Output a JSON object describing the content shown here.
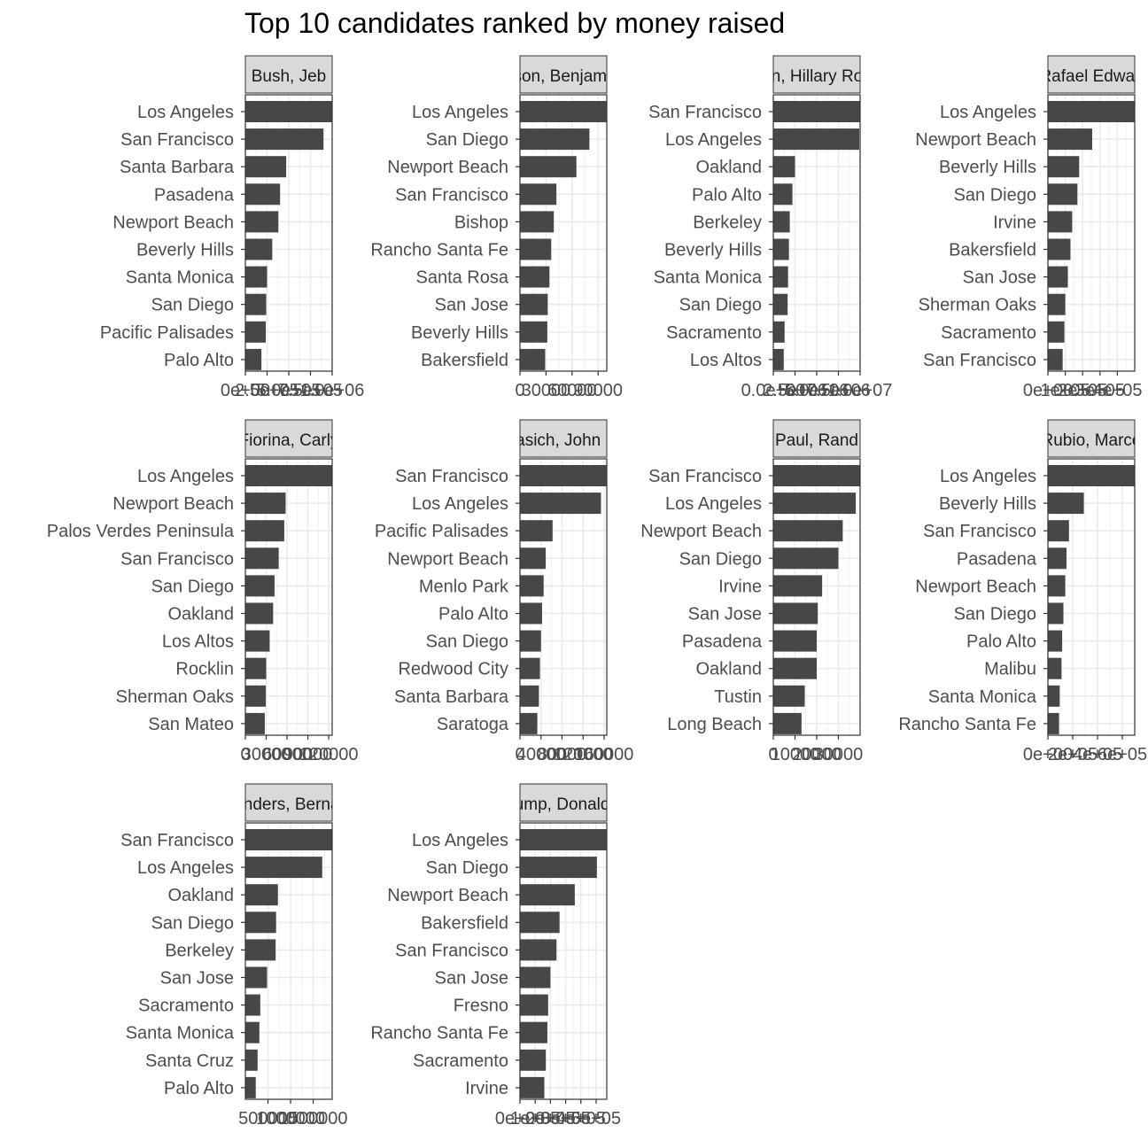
{
  "chart_data": {
    "type": "bar",
    "orientation": "horizontal",
    "title": "Top 10 candidates ranked by money raised",
    "xlabel": "",
    "ylabel": "",
    "grid": true,
    "bar_color": "#474747",
    "panels": [
      {
        "strip": "Bush, Jeb",
        "categories": [
          "Los Angeles",
          "San Francisco",
          "Santa Barbara",
          "Pasadena",
          "Newport Beach",
          "Beverly Hills",
          "Santa Monica",
          "San Diego",
          "Pacific Palisades",
          "Palo Alto"
        ],
        "values": [
          1000000,
          900000,
          470000,
          400000,
          380000,
          310000,
          250000,
          240000,
          235000,
          185000
        ],
        "xlim": [
          0,
          1000000
        ],
        "xticks": [
          0,
          250000,
          500000,
          750000,
          1000000
        ],
        "xtick_labels": "0e+00|2.5e+05|5.0e+05|7.5e+05|1.0e+06"
      },
      {
        "strip": "Carson, Benjamin S.",
        "categories": [
          "Los Angeles",
          "San Diego",
          "Newport Beach",
          "San Francisco",
          "Bishop",
          "Rancho Santa Fe",
          "Santa Rosa",
          "San Jose",
          "Beverly Hills",
          "Bakersfield"
        ],
        "values": [
          100000,
          80000,
          65000,
          42000,
          39000,
          36000,
          34000,
          32000,
          31500,
          29000
        ],
        "xlim": [
          0,
          100000
        ],
        "xticks": [
          0,
          30000,
          60000,
          90000
        ],
        "xtick_labels": "0|30000|60000|90000"
      },
      {
        "strip": "Clinton, Hillary Rodham",
        "categories": [
          "San Francisco",
          "Los Angeles",
          "Oakland",
          "Palo Alto",
          "Berkeley",
          "Beverly Hills",
          "Santa Monica",
          "San Diego",
          "Sacramento",
          "Los Altos"
        ],
        "values": [
          10000000,
          9900000,
          2500000,
          2200000,
          1900000,
          1800000,
          1700000,
          1650000,
          1300000,
          1200000
        ],
        "xlim": [
          0,
          10000000
        ],
        "xticks": [
          0,
          2500000,
          5000000,
          7500000,
          10000000
        ],
        "xtick_labels": "0.0e+00|2.5e+06|5.0e+06|7.5e+06|1.0e+07"
      },
      {
        "strip": "Cruz, Rafael Edward 'Ted'",
        "categories": [
          "Los Angeles",
          "Newport Beach",
          "Beverly Hills",
          "San Diego",
          "Irvine",
          "Bakersfield",
          "San Jose",
          "Sherman Oaks",
          "Sacramento",
          "San Francisco"
        ],
        "values": [
          500000,
          255000,
          180000,
          170000,
          140000,
          130000,
          115000,
          100000,
          95000,
          85000
        ],
        "xlim": [
          0,
          500000
        ],
        "xticks": [
          0,
          100000,
          200000,
          300000,
          400000
        ],
        "xtick_labels": "0e+00|1e+05|2e+05|3e+05|4e+05"
      },
      {
        "strip": "Fiorina, Carly",
        "categories": [
          "Los Angeles",
          "Newport Beach",
          "Palos Verdes Peninsula",
          "San Francisco",
          "San Diego",
          "Oakland",
          "Los Altos",
          "Rocklin",
          "Sherman Oaks",
          "San Mateo"
        ],
        "values": [
          125000,
          58000,
          56000,
          48000,
          42000,
          40000,
          35000,
          30000,
          29500,
          28000
        ],
        "xlim": [
          0,
          125000
        ],
        "xticks": [
          0,
          30000,
          60000,
          90000,
          120000
        ],
        "xtick_labels": "0|30000|60000|90000|120000"
      },
      {
        "strip": "Kasich, John R.",
        "categories": [
          "San Francisco",
          "Los Angeles",
          "Pacific Palisades",
          "Newport Beach",
          "Menlo Park",
          "Palo Alto",
          "San Diego",
          "Redwood City",
          "Santa Barbara",
          "Saratoga"
        ],
        "values": [
          165000,
          154000,
          62000,
          49000,
          45000,
          42000,
          40000,
          38000,
          36000,
          33000
        ],
        "xlim": [
          0,
          165000
        ],
        "xticks": [
          0,
          40000,
          80000,
          120000,
          160000
        ],
        "xtick_labels": "0|40000|80000|120000|160000"
      },
      {
        "strip": "Paul, Rand",
        "categories": [
          "San Francisco",
          "Los Angeles",
          "Newport Beach",
          "San Diego",
          "Irvine",
          "San Jose",
          "Pasadena",
          "Oakland",
          "Tustin",
          "Long Beach"
        ],
        "values": [
          40000,
          38000,
          32000,
          30000,
          22500,
          20500,
          20000,
          20000,
          14500,
          13000
        ],
        "xlim": [
          0,
          40000
        ],
        "xticks": [
          0,
          10000,
          20000,
          30000
        ],
        "xtick_labels": "0|10000|20000|30000"
      },
      {
        "strip": "Rubio, Marco",
        "categories": [
          "Los Angeles",
          "Beverly Hills",
          "San Francisco",
          "Pasadena",
          "Newport Beach",
          "San Diego",
          "Palo Alto",
          "Malibu",
          "Santa Monica",
          "Rancho Santa Fe"
        ],
        "values": [
          700000,
          290000,
          170000,
          150000,
          140000,
          125000,
          115000,
          110000,
          95000,
          90000
        ],
        "xlim": [
          0,
          700000
        ],
        "xticks": [
          0,
          200000,
          400000,
          600000
        ],
        "xtick_labels": "0e+00|2e+05|4e+05|6e+05"
      },
      {
        "strip": "Sanders, Bernard",
        "categories": [
          "San Francisco",
          "Los Angeles",
          "Oakland",
          "San Diego",
          "Berkeley",
          "San Jose",
          "Sacramento",
          "Santa Monica",
          "Santa Cruz",
          "Palo Alto"
        ],
        "values": [
          1920000,
          1700000,
          720000,
          680000,
          670000,
          480000,
          330000,
          310000,
          270000,
          230000
        ],
        "xlim": [
          0,
          1920000
        ],
        "xticks": [
          500000,
          1000000,
          1500000
        ],
        "xtick_labels": "500000|1000000|1500000"
      },
      {
        "strip": "Trump, Donald J.",
        "categories": [
          "Los Angeles",
          "San Diego",
          "Newport Beach",
          "Bakersfield",
          "San Francisco",
          "San Jose",
          "Fresno",
          "Rancho Santa Fe",
          "Sacramento",
          "Irvine"
        ],
        "values": [
          570000,
          505000,
          360000,
          260000,
          240000,
          200000,
          185000,
          180000,
          170000,
          160000
        ],
        "xlim": [
          0,
          570000
        ],
        "xticks": [
          0,
          100000,
          200000,
          300000,
          400000,
          500000
        ],
        "xtick_labels": "0e+00|1e+05|2e+05|3e+05|4e+05|5e+05"
      }
    ]
  }
}
